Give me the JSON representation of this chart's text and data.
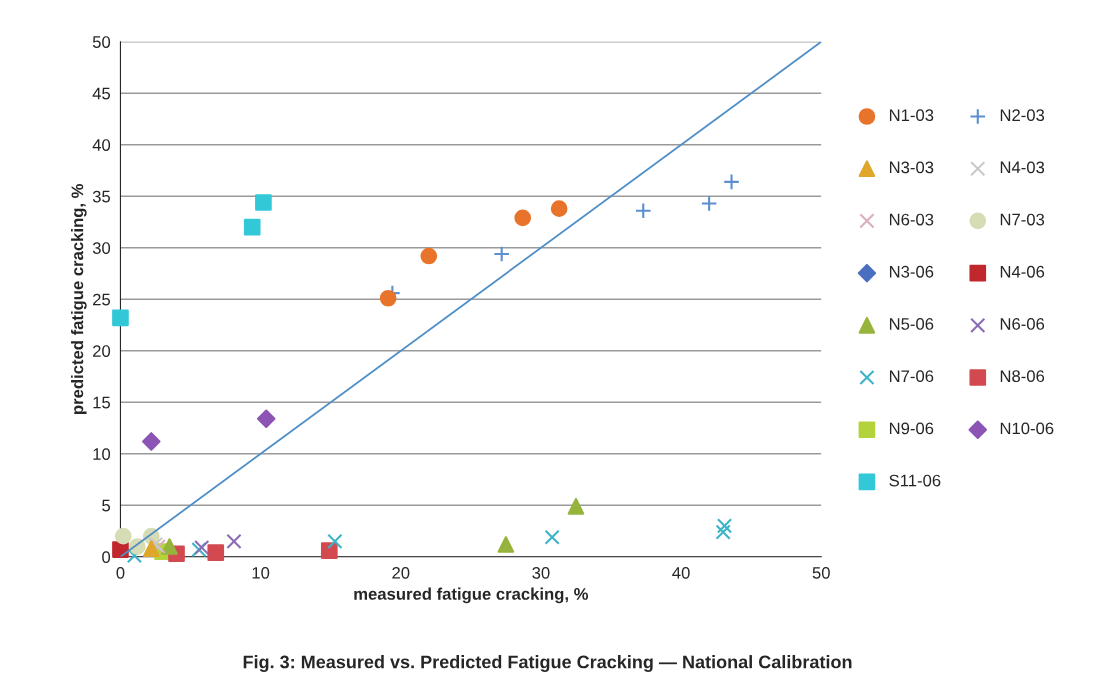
{
  "chart_data": {
    "type": "scatter",
    "xlabel": "measured fatigue cracking, %",
    "ylabel": "predicted fatigue cracking, %",
    "annotations": [
      "Fig. 3: Measured vs. Predicted Fatigue Cracking — National Calibration"
    ],
    "xlim": [
      0,
      50
    ],
    "xticks": [
      0,
      10,
      20,
      30,
      40,
      50
    ],
    "ylim": [
      0,
      50
    ],
    "yticks": [
      0,
      5,
      10,
      15,
      20,
      25,
      30,
      35,
      40,
      45,
      50
    ],
    "grid": "y",
    "legend": "right",
    "series": [
      {
        "name": "N1-03",
        "color": "#e8732a",
        "marker": "circle",
        "x": [
          19.1,
          22.0,
          28.7,
          31.3
        ],
        "values": [
          25.1,
          29.2,
          32.9,
          33.8
        ]
      },
      {
        "name": "N2-03",
        "color": "#5b8fd0",
        "marker": "plus",
        "x": [
          19.4,
          27.2,
          37.3,
          42.0,
          43.6
        ],
        "values": [
          25.6,
          29.4,
          33.6,
          34.3,
          36.4
        ]
      },
      {
        "name": "N3-03",
        "color": "#e0a62a",
        "marker": "triangle",
        "x": [
          2.2
        ],
        "values": [
          0.8
        ]
      },
      {
        "name": "N4-03",
        "color": "#c8c8c8",
        "marker": "cross",
        "x": [
          2.5
        ],
        "values": [
          1.2
        ]
      },
      {
        "name": "N6-03",
        "color": "#d8b0c0",
        "marker": "cross",
        "x": [
          2.7
        ],
        "values": [
          1.0
        ]
      },
      {
        "name": "N7-03",
        "color": "#d6dcb4",
        "marker": "circle",
        "x": [
          0.2,
          2.2,
          1.2
        ],
        "values": [
          2.0,
          2.0,
          1.0
        ]
      },
      {
        "name": "N3-06",
        "color": "#4a6fc0",
        "marker": "diamond",
        "x": [
          null
        ],
        "values": [
          null
        ]
      },
      {
        "name": "N4-06",
        "color": "#c0282e",
        "marker": "square",
        "x": [
          0.0
        ],
        "values": [
          0.7
        ]
      },
      {
        "name": "N5-06",
        "color": "#96b43c",
        "marker": "triangle",
        "x": [
          3.5,
          27.5,
          32.5
        ],
        "values": [
          1.0,
          1.2,
          4.9
        ]
      },
      {
        "name": "N6-06",
        "color": "#8c6cb4",
        "marker": "cross",
        "x": [
          5.8,
          8.1
        ],
        "values": [
          0.9,
          1.5
        ]
      },
      {
        "name": "N7-06",
        "color": "#3cb4c8",
        "marker": "cross",
        "x": [
          1.0,
          5.6,
          15.3,
          30.8,
          43.0,
          43.1
        ],
        "values": [
          0.1,
          0.7,
          1.5,
          1.9,
          2.4,
          3.0
        ]
      },
      {
        "name": "N8-06",
        "color": "#d24a50",
        "marker": "square",
        "x": [
          4.0,
          6.8,
          14.9
        ],
        "values": [
          0.3,
          0.4,
          0.6
        ]
      },
      {
        "name": "N9-06",
        "color": "#b4d23c",
        "marker": "square",
        "x": [
          3.0
        ],
        "values": [
          0.5
        ]
      },
      {
        "name": "N10-06",
        "color": "#8c54b4",
        "marker": "diamond",
        "x": [
          2.2,
          10.4
        ],
        "values": [
          11.2,
          13.4
        ]
      },
      {
        "name": "S11-06",
        "color": "#32c8d8",
        "marker": "square",
        "x": [
          0.0,
          9.4,
          10.2
        ],
        "values": [
          23.2,
          32.0,
          34.4
        ]
      },
      {
        "type": "line",
        "color": "#4f8fc8",
        "x": [
          0,
          50
        ],
        "values": [
          0,
          50
        ]
      }
    ]
  }
}
